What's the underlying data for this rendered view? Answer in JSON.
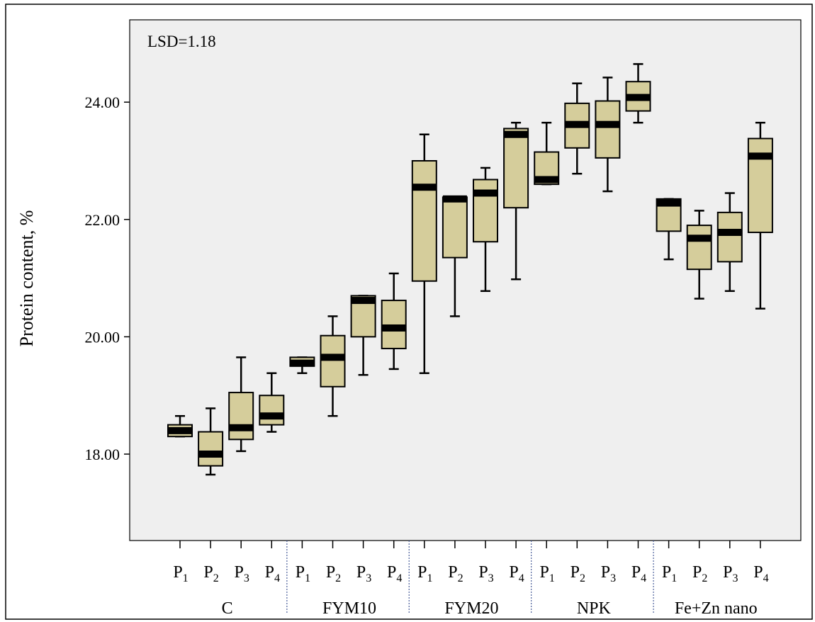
{
  "chart_data": {
    "type": "box",
    "ylabel": "Protein content, %",
    "annotation": "LSD=1.18",
    "ylim": [
      16.5,
      25.5
    ],
    "yticks": [
      18.0,
      20.0,
      22.0,
      24.0
    ],
    "ytick_labels": [
      "18.00",
      "20.00",
      "22.00",
      "24.00"
    ],
    "grid": false,
    "box_color": "#d5cd9b",
    "plot_background": "#efefef",
    "groups": [
      {
        "label": "C",
        "boxes": [
          {
            "category": "P",
            "sub": "1",
            "min": 18.3,
            "q1": 18.3,
            "median": 18.4,
            "q3": 18.5,
            "max": 18.65
          },
          {
            "category": "P",
            "sub": "2",
            "min": 17.65,
            "q1": 17.8,
            "median": 18.0,
            "q3": 18.38,
            "max": 18.78
          },
          {
            "category": "P",
            "sub": "3",
            "min": 18.05,
            "q1": 18.25,
            "median": 18.45,
            "q3": 19.05,
            "max": 19.65
          },
          {
            "category": "P",
            "sub": "4",
            "min": 18.38,
            "q1": 18.5,
            "median": 18.65,
            "q3": 19.0,
            "max": 19.38
          }
        ]
      },
      {
        "label": "FYM10",
        "boxes": [
          {
            "category": "P",
            "sub": "1",
            "min": 19.38,
            "q1": 19.5,
            "median": 19.55,
            "q3": 19.65,
            "max": 19.65
          },
          {
            "category": "P",
            "sub": "2",
            "min": 18.65,
            "q1": 19.15,
            "median": 19.65,
            "q3": 20.02,
            "max": 20.35
          },
          {
            "category": "P",
            "sub": "3",
            "min": 19.35,
            "q1": 20.0,
            "median": 20.62,
            "q3": 20.7,
            "max": 20.7
          },
          {
            "category": "P",
            "sub": "4",
            "min": 19.45,
            "q1": 19.8,
            "median": 20.15,
            "q3": 20.62,
            "max": 21.08
          }
        ]
      },
      {
        "label": "FYM20",
        "boxes": [
          {
            "category": "P",
            "sub": "1",
            "min": 19.38,
            "q1": 20.95,
            "median": 22.55,
            "q3": 23.0,
            "max": 23.45
          },
          {
            "category": "P",
            "sub": "2",
            "min": 20.35,
            "q1": 21.35,
            "median": 22.35,
            "q3": 22.38,
            "max": 22.38
          },
          {
            "category": "P",
            "sub": "3",
            "min": 20.78,
            "q1": 21.62,
            "median": 22.45,
            "q3": 22.68,
            "max": 22.88
          },
          {
            "category": "P",
            "sub": "4",
            "min": 20.98,
            "q1": 22.2,
            "median": 23.45,
            "q3": 23.55,
            "max": 23.65
          }
        ]
      },
      {
        "label": "NPK",
        "boxes": [
          {
            "category": "P",
            "sub": "1",
            "min": 22.6,
            "q1": 22.6,
            "median": 22.68,
            "q3": 23.15,
            "max": 23.65
          },
          {
            "category": "P",
            "sub": "2",
            "min": 22.78,
            "q1": 23.22,
            "median": 23.62,
            "q3": 23.98,
            "max": 24.32
          },
          {
            "category": "P",
            "sub": "3",
            "min": 22.48,
            "q1": 23.05,
            "median": 23.62,
            "q3": 24.02,
            "max": 24.42
          },
          {
            "category": "P",
            "sub": "4",
            "min": 23.65,
            "q1": 23.85,
            "median": 24.08,
            "q3": 24.35,
            "max": 24.65
          }
        ]
      },
      {
        "label": "Fe+Zn nano",
        "boxes": [
          {
            "category": "P",
            "sub": "1",
            "min": 21.32,
            "q1": 21.8,
            "median": 22.28,
            "q3": 22.35,
            "max": 22.35
          },
          {
            "category": "P",
            "sub": "2",
            "min": 20.65,
            "q1": 21.15,
            "median": 21.68,
            "q3": 21.9,
            "max": 22.15
          },
          {
            "category": "P",
            "sub": "3",
            "min": 20.78,
            "q1": 21.28,
            "median": 21.78,
            "q3": 22.12,
            "max": 22.45
          },
          {
            "category": "P",
            "sub": "4",
            "min": 20.48,
            "q1": 21.78,
            "median": 23.08,
            "q3": 23.38,
            "max": 23.65
          }
        ]
      }
    ]
  }
}
